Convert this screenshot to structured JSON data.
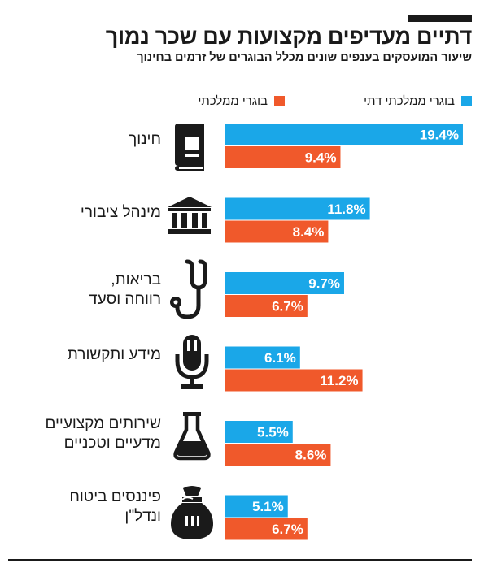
{
  "title": "דתיים מעדיפים מקצועות עם שכר נמוך",
  "subtitle": "שיעור המועסקים בענפים שונים מכלל הבוגרים של זרמים בחינוך",
  "colors": {
    "religious": "#1aa7e8",
    "state": "#f0592b",
    "text": "#1a1a1a"
  },
  "chart_data": {
    "type": "bar",
    "orientation": "horizontal",
    "categories": [
      "חינוך",
      "מינהל ציבורי",
      "בריאות,\nרווחה וסעד",
      "מידע ותקשורת",
      "שירותים מקצועיים\nמדעיים וטכניים",
      "פיננסים ביטוח\nונדל\"ן"
    ],
    "series": [
      {
        "name": "בוגרי ממלכתי דתי",
        "values": [
          19.4,
          11.8,
          9.7,
          6.1,
          5.5,
          5.1
        ],
        "labels": [
          "19.4%",
          "11.8%",
          "9.7%",
          "6.1%",
          "5.5%",
          "5.1%"
        ]
      },
      {
        "name": "בוגרי ממלכתי",
        "values": [
          9.4,
          8.4,
          6.7,
          11.2,
          8.6,
          6.7
        ],
        "labels": [
          "9.4%",
          "8.4%",
          "6.7%",
          "11.2%",
          "8.6%",
          "6.7%"
        ]
      }
    ],
    "icons": [
      "book-icon",
      "government-building-icon",
      "stethoscope-icon",
      "microphone-icon",
      "flask-icon",
      "money-bag-icon"
    ],
    "unit": "%"
  }
}
